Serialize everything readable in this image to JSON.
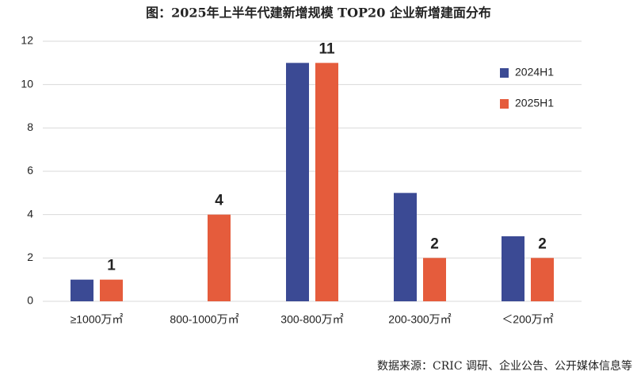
{
  "chart_data": {
    "type": "bar",
    "title": "图：2025年上半年代建新增规模 TOP20 企业新增建面分布",
    "source": "数据来源：CRIC 调研、企业公告、公开媒体信息等",
    "categories": [
      "≥1000万㎡",
      "800-1000万㎡",
      "300-800万㎡",
      "200-300万㎡",
      "＜200万㎡"
    ],
    "series": [
      {
        "name": "2024H1",
        "color": "#3b4a94",
        "values": [
          1,
          0,
          11,
          5,
          3
        ],
        "data_labels": false
      },
      {
        "name": "2025H1",
        "color": "#e55c3c",
        "values": [
          1,
          4,
          11,
          2,
          2
        ],
        "data_labels": true
      }
    ],
    "ylim": [
      0,
      12
    ],
    "yticks": [
      0,
      2,
      4,
      6,
      8,
      10,
      12
    ],
    "grid": true,
    "legend": "right"
  }
}
